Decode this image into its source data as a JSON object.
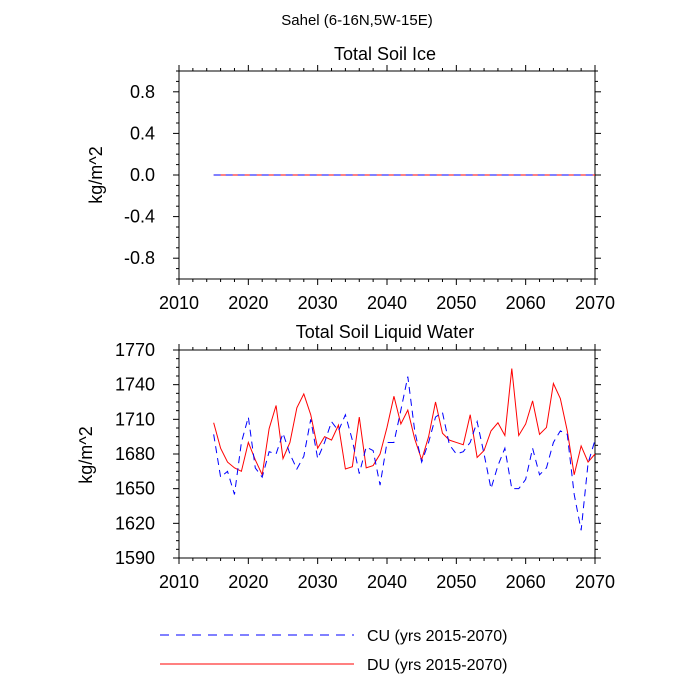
{
  "figure_title": "Sahel (6-16N,5W-15E)",
  "legend": [
    {
      "label": "CU (yrs 2015-2070)",
      "color": "#0000ff",
      "dash": "dashed"
    },
    {
      "label": "DU (yrs 2015-2070)",
      "color": "#ff0000",
      "dash": "solid"
    }
  ],
  "chart_data": [
    {
      "type": "line",
      "title": "Total Soil Ice",
      "xlabel": "",
      "ylabel": "kg/m^2",
      "xlim": [
        2010,
        2070
      ],
      "ylim": [
        -1.0,
        1.0
      ],
      "xticks": [
        2010,
        2020,
        2030,
        2040,
        2050,
        2060,
        2070
      ],
      "yticks": [
        -0.8,
        -0.4,
        0.0,
        0.4,
        0.8
      ],
      "ytick_labels": [
        "-0.8",
        "-0.4",
        "0.0",
        "0.4",
        "0.8"
      ],
      "x": [
        2015,
        2070
      ],
      "series": [
        {
          "name": "CU (yrs 2015-2070)",
          "color": "#0000ff",
          "dash": "dashed",
          "values": [
            0.0,
            0.0
          ]
        },
        {
          "name": "DU (yrs 2015-2070)",
          "color": "#ff0000",
          "dash": "solid",
          "values": [
            0.0,
            0.0
          ]
        }
      ]
    },
    {
      "type": "line",
      "title": "Total Soil Liquid Water",
      "xlabel": "",
      "ylabel": "kg/m^2",
      "xlim": [
        2010,
        2070
      ],
      "ylim": [
        1590,
        1770
      ],
      "xticks": [
        2010,
        2020,
        2030,
        2040,
        2050,
        2060,
        2070
      ],
      "yticks": [
        1590,
        1620,
        1650,
        1680,
        1710,
        1740,
        1770
      ],
      "ytick_labels": [
        "1590",
        "1620",
        "1650",
        "1680",
        "1710",
        "1740",
        "1770"
      ],
      "x": [
        2015,
        2016,
        2017,
        2018,
        2019,
        2020,
        2021,
        2022,
        2023,
        2024,
        2025,
        2026,
        2027,
        2028,
        2029,
        2030,
        2031,
        2032,
        2033,
        2034,
        2035,
        2036,
        2037,
        2038,
        2039,
        2040,
        2041,
        2042,
        2043,
        2044,
        2045,
        2046,
        2047,
        2048,
        2049,
        2050,
        2051,
        2052,
        2053,
        2054,
        2055,
        2056,
        2057,
        2058,
        2059,
        2060,
        2061,
        2062,
        2063,
        2064,
        2065,
        2066,
        2067,
        2068,
        2069,
        2070
      ],
      "series": [
        {
          "name": "CU (yrs 2015-2070)",
          "color": "#0000ff",
          "dash": "dashed",
          "values": [
            1697,
            1660,
            1665,
            1645,
            1690,
            1712,
            1668,
            1660,
            1682,
            1680,
            1698,
            1680,
            1667,
            1678,
            1710,
            1676,
            1690,
            1708,
            1700,
            1714,
            1692,
            1663,
            1686,
            1683,
            1653,
            1690,
            1690,
            1718,
            1747,
            1700,
            1673,
            1690,
            1712,
            1716,
            1688,
            1680,
            1682,
            1690,
            1708,
            1680,
            1650,
            1670,
            1685,
            1650,
            1650,
            1658,
            1685,
            1662,
            1668,
            1690,
            1700,
            1697,
            1645,
            1614,
            1672,
            1692
          ]
        },
        {
          "name": "DU (yrs 2015-2070)",
          "color": "#ff0000",
          "dash": "solid",
          "values": [
            1707,
            1685,
            1673,
            1668,
            1665,
            1690,
            1675,
            1662,
            1702,
            1722,
            1676,
            1690,
            1720,
            1732,
            1714,
            1685,
            1695,
            1692,
            1705,
            1667,
            1669,
            1712,
            1668,
            1670,
            1680,
            1703,
            1730,
            1706,
            1718,
            1693,
            1675,
            1695,
            1725,
            1698,
            1692,
            1690,
            1688,
            1714,
            1677,
            1683,
            1700,
            1707,
            1696,
            1754,
            1696,
            1706,
            1726,
            1697,
            1703,
            1741,
            1728,
            1700,
            1662,
            1687,
            1673,
            1680
          ]
        }
      ]
    }
  ]
}
